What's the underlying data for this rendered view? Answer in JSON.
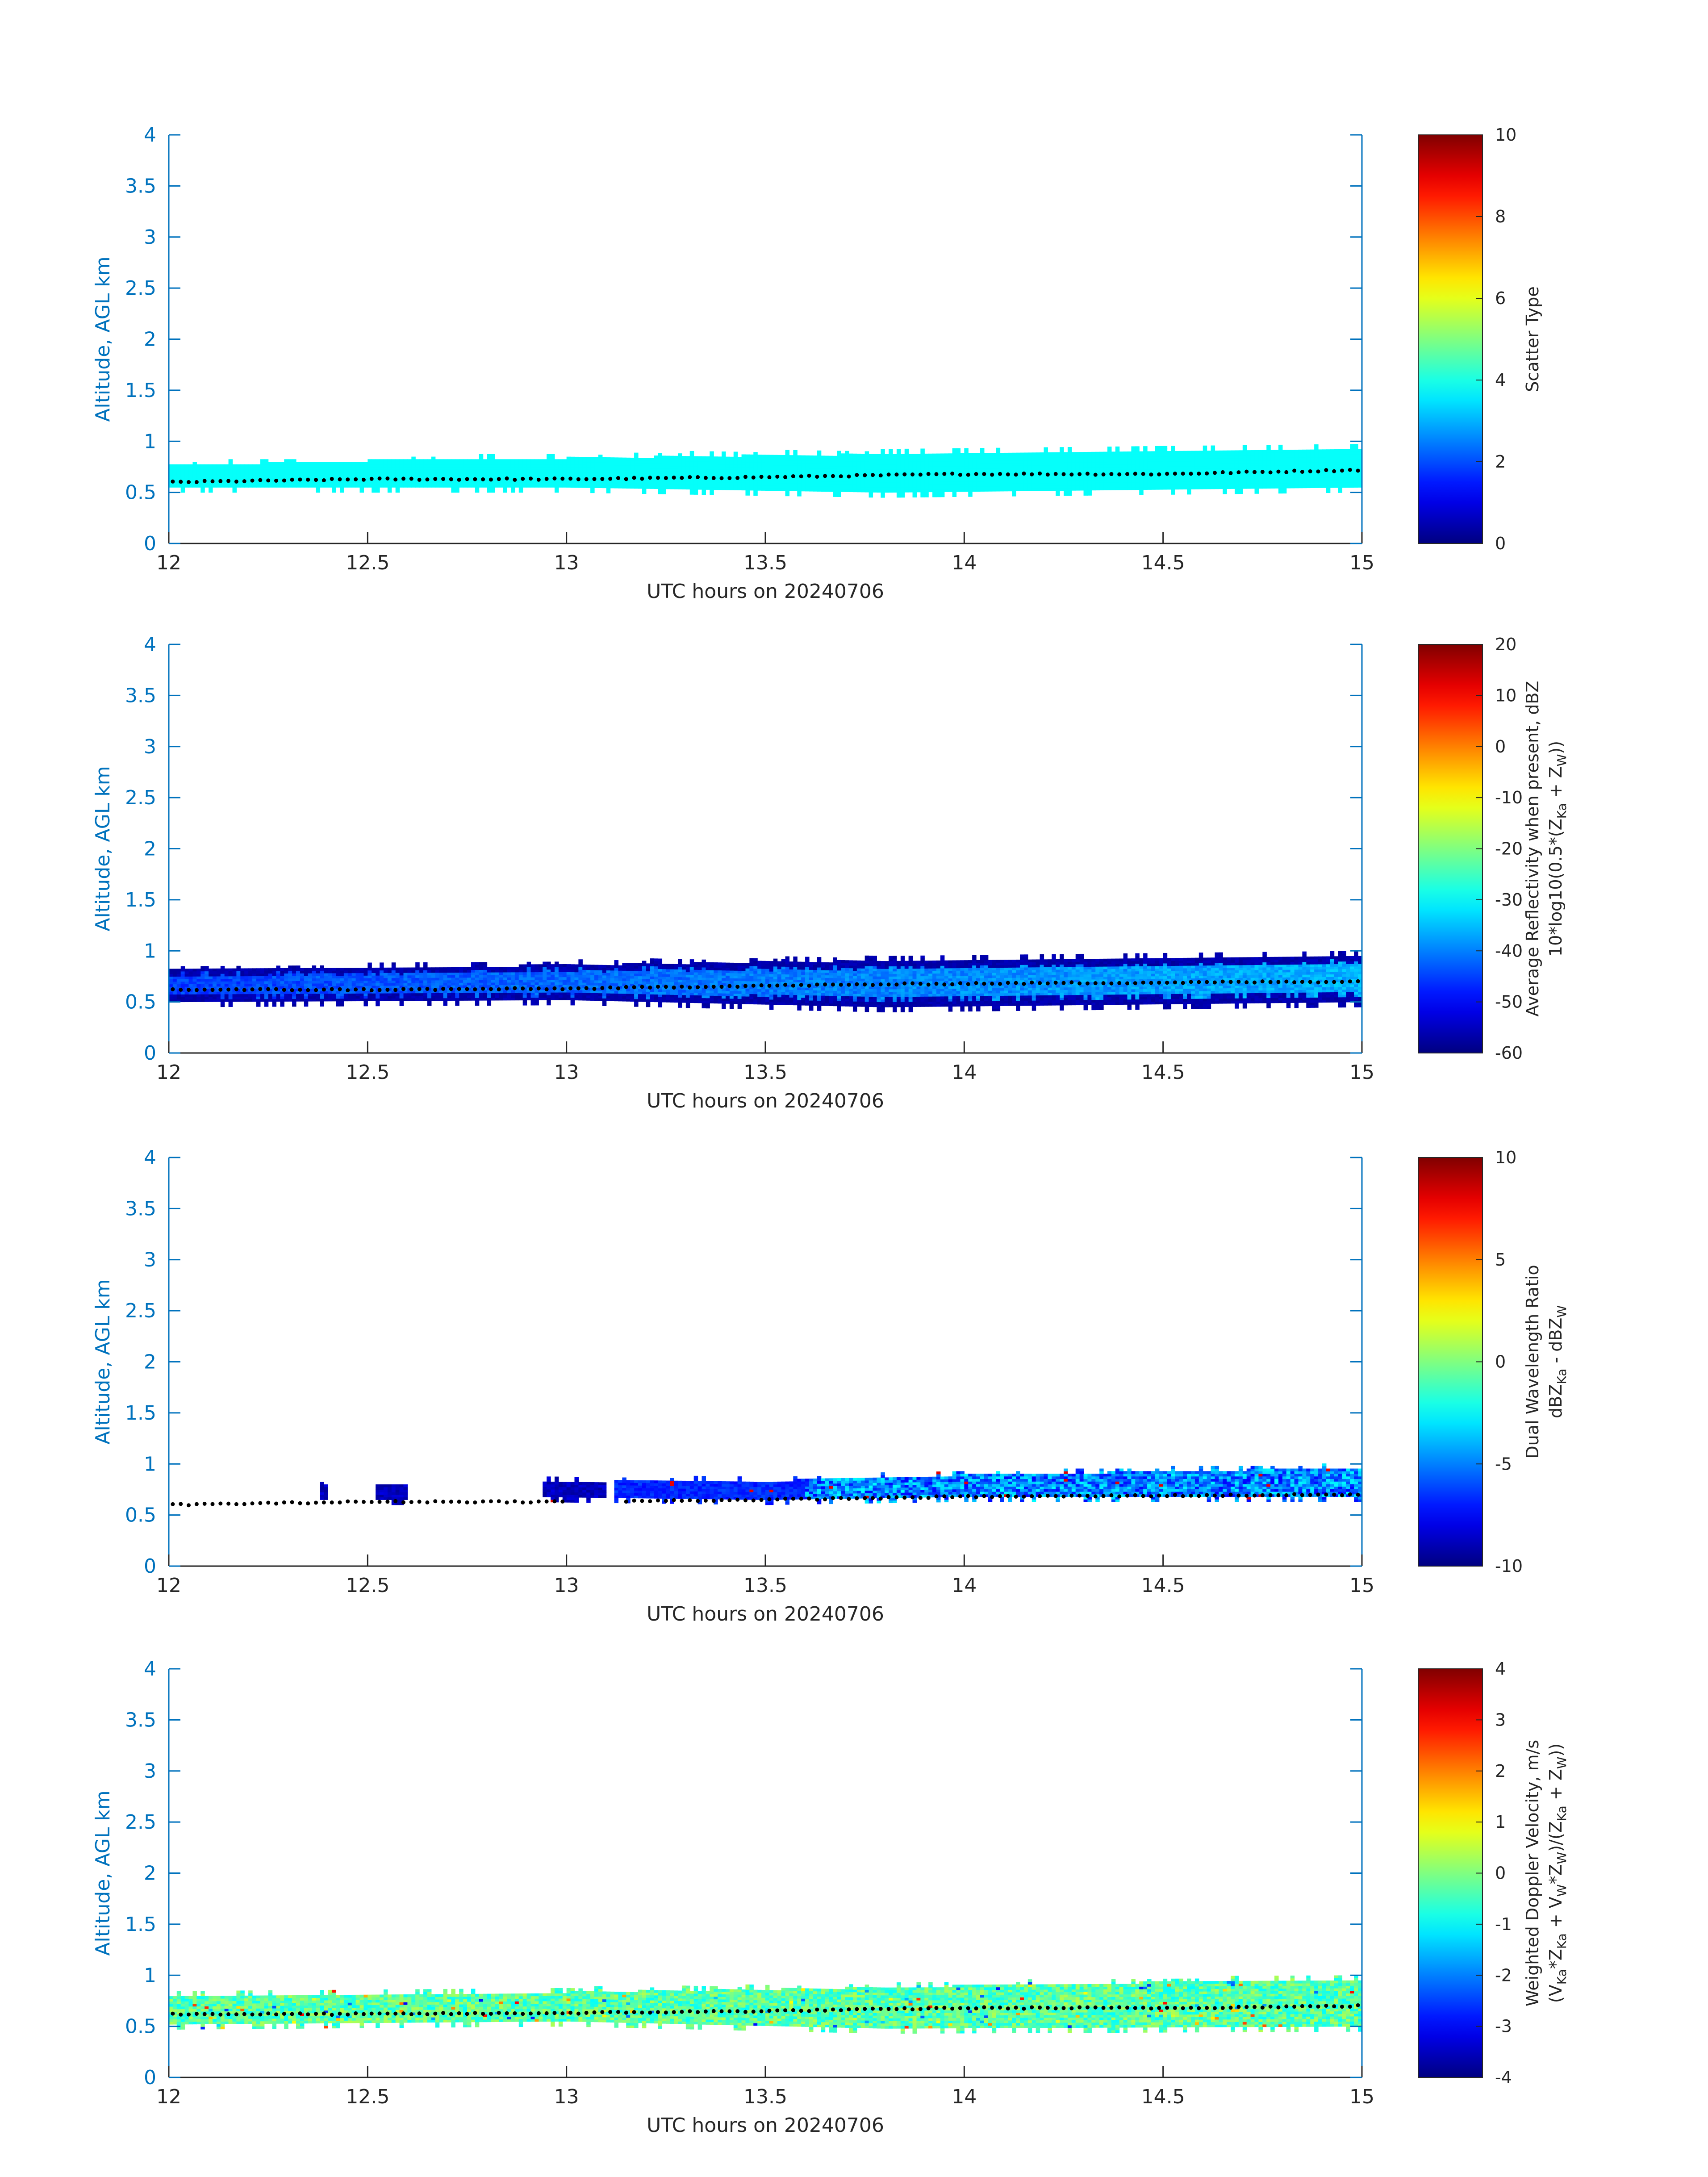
{
  "colors": {
    "axis": "#0072BD",
    "text": "#262626",
    "colormap": "jet",
    "dots": "#000000"
  },
  "chart_data": [
    {
      "type": "heatmap",
      "title": "",
      "xlabel": "UTC hours on 20240706",
      "ylabel": "Altitude, AGL km",
      "xlim": [
        12,
        15
      ],
      "ylim": [
        0,
        4
      ],
      "xticks": [
        "12",
        "12.5",
        "13",
        "13.5",
        "14",
        "14.5",
        "15"
      ],
      "yticks": [
        "0",
        "0.5",
        "1",
        "1.5",
        "2",
        "2.5",
        "3",
        "3.5",
        "4"
      ],
      "colorbar": {
        "label_lines": [
          "Scatter Type"
        ],
        "clim": [
          0,
          10
        ],
        "ticks": [
          "0",
          "2",
          "4",
          "6",
          "8",
          "10"
        ]
      },
      "field": "scatter",
      "layer_bottom_km": [
        [
          12.0,
          0.55
        ],
        [
          13.0,
          0.55
        ],
        [
          13.8,
          0.5
        ],
        [
          15.0,
          0.55
        ]
      ],
      "layer_top_km": [
        [
          12.0,
          0.75
        ],
        [
          12.5,
          0.8
        ],
        [
          13.5,
          0.85
        ],
        [
          14.7,
          0.9
        ],
        [
          15.0,
          0.92
        ]
      ],
      "dotted_line_km": [
        [
          12.0,
          0.6
        ],
        [
          12.5,
          0.63
        ],
        [
          13.0,
          0.63
        ],
        [
          13.5,
          0.65
        ],
        [
          14.0,
          0.68
        ],
        [
          14.5,
          0.68
        ],
        [
          15.0,
          0.72
        ]
      ],
      "dominant_value": 3.8
    },
    {
      "type": "heatmap",
      "title": "",
      "xlabel": "UTC hours on 20240706",
      "ylabel": "Altitude, AGL km",
      "xlim": [
        12,
        15
      ],
      "ylim": [
        0,
        4
      ],
      "xticks": [
        "12",
        "12.5",
        "13",
        "13.5",
        "14",
        "14.5",
        "15"
      ],
      "yticks": [
        "0",
        "0.5",
        "1",
        "1.5",
        "2",
        "2.5",
        "3",
        "3.5",
        "4"
      ],
      "colorbar": {
        "label_lines": [
          "Average Reflectivity when present, dBZ",
          "10*log10(0.5*(Z",
          "Ka",
          " + Z",
          "W",
          "))"
        ],
        "clim": [
          -60,
          20
        ],
        "ticks": [
          "-60",
          "-50",
          "-40",
          "-30",
          "-20",
          "-10",
          "0",
          "10",
          "20"
        ]
      },
      "field": "reflectivity",
      "layer_bottom_km": [
        [
          12.0,
          0.5
        ],
        [
          13.0,
          0.52
        ],
        [
          13.8,
          0.45
        ],
        [
          15.0,
          0.5
        ]
      ],
      "layer_top_km": [
        [
          12.0,
          0.8
        ],
        [
          12.5,
          0.82
        ],
        [
          13.5,
          0.88
        ],
        [
          14.5,
          0.92
        ],
        [
          15.0,
          0.95
        ]
      ],
      "dotted_line_km": [
        [
          12.0,
          0.62
        ],
        [
          12.5,
          0.62
        ],
        [
          13.0,
          0.63
        ],
        [
          13.5,
          0.66
        ],
        [
          14.0,
          0.68
        ],
        [
          14.5,
          0.69
        ],
        [
          15.0,
          0.7
        ]
      ],
      "core_value": -40,
      "edge_value": -58
    },
    {
      "type": "heatmap",
      "title": "",
      "xlabel": "UTC hours on 20240706",
      "ylabel": "Altitude, AGL km",
      "xlim": [
        12,
        15
      ],
      "ylim": [
        0,
        4
      ],
      "xticks": [
        "12",
        "12.5",
        "13",
        "13.5",
        "14",
        "14.5",
        "15"
      ],
      "yticks": [
        "0",
        "0.5",
        "1",
        "1.5",
        "2",
        "2.5",
        "3",
        "3.5",
        "4"
      ],
      "colorbar": {
        "label_lines": [
          "Dual Wavelength Ratio",
          "dBZ",
          "Ka",
          " - dBZ",
          "W"
        ],
        "clim": [
          -10,
          10
        ],
        "ticks": [
          "-10",
          "-5",
          "0",
          "5",
          "10"
        ]
      },
      "field": "dwr",
      "patches_hours": [
        [
          12.38,
          12.4
        ],
        [
          12.52,
          12.6
        ],
        [
          12.94,
          13.1
        ],
        [
          13.12,
          15.0
        ]
      ],
      "layer_bottom_km": [
        [
          12.9,
          0.68
        ],
        [
          13.5,
          0.65
        ],
        [
          14.0,
          0.68
        ],
        [
          15.0,
          0.68
        ]
      ],
      "layer_top_km": [
        [
          12.9,
          0.82
        ],
        [
          13.5,
          0.82
        ],
        [
          14.0,
          0.88
        ],
        [
          15.0,
          0.95
        ]
      ],
      "dotted_line_km": [
        [
          12.0,
          0.6
        ],
        [
          12.5,
          0.63
        ],
        [
          13.0,
          0.63
        ],
        [
          13.5,
          0.65
        ],
        [
          14.0,
          0.68
        ],
        [
          14.5,
          0.69
        ],
        [
          15.0,
          0.7
        ]
      ],
      "typical_value": -7.5
    },
    {
      "type": "heatmap",
      "title": "",
      "xlabel": "UTC hours on 20240706",
      "ylabel": "Altitude, AGL km",
      "xlim": [
        12,
        15
      ],
      "ylim": [
        0,
        4
      ],
      "xticks": [
        "12",
        "12.5",
        "13",
        "13.5",
        "14",
        "14.5",
        "15"
      ],
      "yticks": [
        "0",
        "0.5",
        "1",
        "1.5",
        "2",
        "2.5",
        "3",
        "3.5",
        "4"
      ],
      "colorbar": {
        "label_lines": [
          "Weighted Doppler Velocity, m/s",
          "(V",
          "Ka",
          "*Z",
          "Ka",
          " + V",
          "W",
          "*Z",
          "W",
          ")/(Z",
          "Ka",
          " + Z",
          "W",
          "))"
        ],
        "clim": [
          -4,
          4
        ],
        "ticks": [
          "-4",
          "-3",
          "-2",
          "-1",
          "0",
          "1",
          "2",
          "3",
          "4"
        ]
      },
      "field": "velocity",
      "layer_bottom_km": [
        [
          12.0,
          0.52
        ],
        [
          13.0,
          0.55
        ],
        [
          13.8,
          0.48
        ],
        [
          15.0,
          0.5
        ]
      ],
      "layer_top_km": [
        [
          12.0,
          0.78
        ],
        [
          12.5,
          0.8
        ],
        [
          13.5,
          0.85
        ],
        [
          14.5,
          0.92
        ],
        [
          15.0,
          0.95
        ]
      ],
      "dotted_line_km": [
        [
          12.0,
          0.62
        ],
        [
          12.5,
          0.62
        ],
        [
          13.0,
          0.63
        ],
        [
          13.5,
          0.65
        ],
        [
          14.0,
          0.68
        ],
        [
          14.5,
          0.68
        ],
        [
          15.0,
          0.7
        ]
      ],
      "typical_value": -0.3
    }
  ]
}
